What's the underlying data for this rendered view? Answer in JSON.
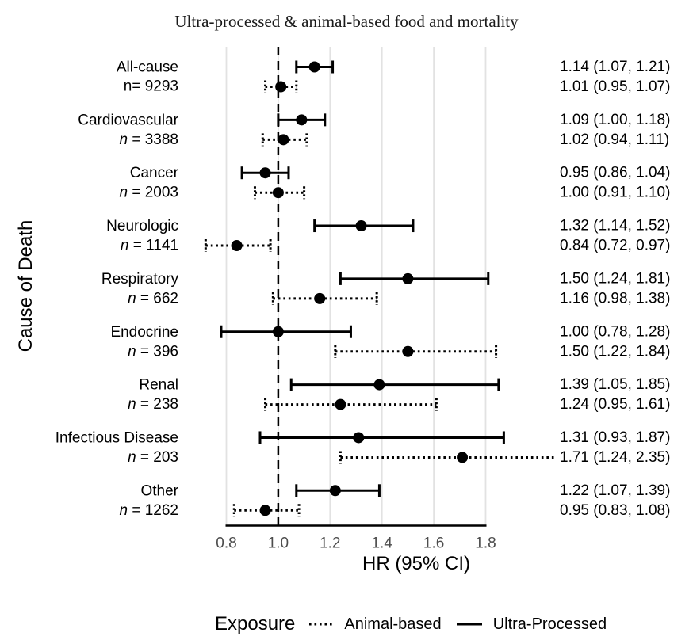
{
  "title": "Ultra-processed & animal-based food and mortality",
  "colors": {
    "foreground": "#000000",
    "tick_label": "#4d4d4d",
    "gridline": "#e2e2e2",
    "background": "#ffffff"
  },
  "legend": {
    "title": "Exposure",
    "items": [
      {
        "label": "Animal-based",
        "style": "dotted"
      },
      {
        "label": "Ultra-Processed",
        "style": "solid"
      }
    ]
  },
  "chart_data": {
    "type": "forest",
    "title": "Ultra-processed & animal-based food and mortality",
    "xlabel": "HR (95% CI)",
    "ylabel": "Cause of Death",
    "x_ticks": [
      0.8,
      1.0,
      1.2,
      1.4,
      1.6,
      1.8
    ],
    "xlim": [
      0.69,
      1.92
    ],
    "reference_line": 1.0,
    "grid": "major-vertical-only",
    "legend_position": "bottom",
    "series_names": [
      "Ultra-Processed",
      "Animal-based"
    ],
    "rows": [
      {
        "cause": "All-cause",
        "n_label": "n= 9293",
        "n_italic": false,
        "ultra_processed": {
          "hr": 1.14,
          "lo": 1.07,
          "hi": 1.21,
          "label": "1.14 (1.07, 1.21)"
        },
        "animal_based": {
          "hr": 1.01,
          "lo": 0.95,
          "hi": 1.07,
          "label": "1.01 (0.95, 1.07)"
        }
      },
      {
        "cause": "Cardiovascular",
        "n_label": "n = 3388",
        "n_italic": true,
        "ultra_processed": {
          "hr": 1.09,
          "lo": 1.0,
          "hi": 1.18,
          "label": "1.09 (1.00, 1.18)"
        },
        "animal_based": {
          "hr": 1.02,
          "lo": 0.94,
          "hi": 1.11,
          "label": "1.02 (0.94, 1.11)"
        }
      },
      {
        "cause": "Cancer",
        "n_label": "n = 2003",
        "n_italic": true,
        "ultra_processed": {
          "hr": 0.95,
          "lo": 0.86,
          "hi": 1.04,
          "label": "0.95 (0.86, 1.04)"
        },
        "animal_based": {
          "hr": 1.0,
          "lo": 0.91,
          "hi": 1.1,
          "label": "1.00 (0.91, 1.10)"
        }
      },
      {
        "cause": "Neurologic",
        "n_label": "n = 1141",
        "n_italic": true,
        "ultra_processed": {
          "hr": 1.32,
          "lo": 1.14,
          "hi": 1.52,
          "label": "1.32 (1.14, 1.52)"
        },
        "animal_based": {
          "hr": 0.84,
          "lo": 0.72,
          "hi": 0.97,
          "label": "0.84 (0.72, 0.97)"
        }
      },
      {
        "cause": "Respiratory",
        "n_label": "n = 662",
        "n_italic": true,
        "ultra_processed": {
          "hr": 1.5,
          "lo": 1.24,
          "hi": 1.81,
          "label": "1.50 (1.24, 1.81)"
        },
        "animal_based": {
          "hr": 1.16,
          "lo": 0.98,
          "hi": 1.38,
          "label": "1.16 (0.98, 1.38)"
        }
      },
      {
        "cause": "Endocrine",
        "n_label": "n = 396",
        "n_italic": true,
        "ultra_processed": {
          "hr": 1.0,
          "lo": 0.78,
          "hi": 1.28,
          "label": "1.00 (0.78, 1.28)"
        },
        "animal_based": {
          "hr": 1.5,
          "lo": 1.22,
          "hi": 1.84,
          "label": "1.50 (1.22, 1.84)"
        }
      },
      {
        "cause": "Renal",
        "n_label": "n = 238",
        "n_italic": true,
        "ultra_processed": {
          "hr": 1.39,
          "lo": 1.05,
          "hi": 1.85,
          "label": "1.39 (1.05, 1.85)"
        },
        "animal_based": {
          "hr": 1.24,
          "lo": 0.95,
          "hi": 1.61,
          "label": "1.24 (0.95, 1.61)"
        }
      },
      {
        "cause": "Infectious Disease",
        "n_label": "n = 203",
        "n_italic": true,
        "ultra_processed": {
          "hr": 1.31,
          "lo": 0.93,
          "hi": 1.87,
          "label": "1.31 (0.93, 1.87)"
        },
        "animal_based": {
          "hr": 1.71,
          "lo": 1.24,
          "hi": 2.35,
          "label": "1.71 (1.24, 2.35)"
        }
      },
      {
        "cause": "Other",
        "n_label": "n = 1262",
        "n_italic": true,
        "ultra_processed": {
          "hr": 1.22,
          "lo": 1.07,
          "hi": 1.39,
          "label": "1.22 (1.07, 1.39)"
        },
        "animal_based": {
          "hr": 0.95,
          "lo": 0.83,
          "hi": 1.08,
          "label": "0.95 (0.83, 1.08)"
        }
      }
    ]
  }
}
